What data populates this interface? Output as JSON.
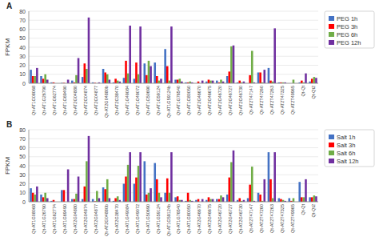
{
  "chart_data": [
    {
      "type": "bar",
      "title": "A",
      "y_label": "FPKM",
      "categories": [
        "Qt-AT1G08068",
        "Qt-AT1G26790",
        "Qt-AT1G62774",
        "Qt-AT1G69490",
        "Qt-AT2G04880",
        "Qt-AT2G04874",
        "Qt-AT2G04877",
        "Qt-AT2G04880b",
        "Qt-AT2G38470",
        "Qt-AT1G49084",
        "Qt-AT1G49072",
        "Qt-AT1G50690",
        "Qt-AT1G59124",
        "Qt-AT1G59124b",
        "Qt-AT1G76540",
        "Qt-AT1G80050",
        "Qt-AT2G46670",
        "Qt-AT2G46675",
        "Qt-AT2G46720",
        "Qt-AT2G46727",
        "Qt-AT2G46730",
        "Qt-AT2T47147",
        "Qt-AT2T47260",
        "Qt-AT2T47263",
        "Qt-AT2T47325",
        "Qt-AT2T49965",
        "Qt-Qt",
        "Qt-Qt2"
      ],
      "series": [
        {
          "name": "PEG 1h",
          "color": "#4472c4",
          "values": [
            15,
            8,
            1,
            0.5,
            3,
            7,
            1,
            16,
            1,
            6,
            5,
            22,
            23,
            38,
            4,
            1,
            0,
            2,
            3,
            8,
            1,
            0,
            12,
            17,
            1,
            0,
            1,
            2
          ]
        },
        {
          "name": "PEG 3h",
          "color": "#ff0000",
          "values": [
            8,
            5,
            1,
            0.5,
            1,
            22,
            0.5,
            12,
            5,
            25,
            23,
            9,
            8,
            19,
            4,
            1,
            2,
            4,
            1,
            13,
            3,
            9,
            12,
            3,
            1,
            0,
            3,
            5
          ]
        },
        {
          "name": "PEG 6h",
          "color": "#70ad47",
          "values": [
            8,
            10,
            0,
            0,
            9,
            16,
            0,
            10,
            3,
            11,
            10,
            25,
            3,
            3,
            5,
            2,
            0,
            3,
            4,
            41,
            1,
            36,
            1,
            2,
            1,
            4,
            1,
            7
          ]
        },
        {
          "name": "PEG 12h",
          "color": "#7030a0",
          "values": [
            17,
            4,
            0,
            4,
            28,
            73,
            1,
            4,
            2,
            64,
            63,
            19,
            5,
            63,
            2,
            1,
            3,
            3,
            2,
            42,
            2,
            1,
            15,
            61,
            1,
            0,
            11,
            6
          ]
        }
      ],
      "ylim": [
        0,
        80
      ],
      "yticks": [
        0,
        10,
        20,
        30,
        40,
        50,
        60,
        70,
        80
      ],
      "grid": true,
      "legend": "right"
    },
    {
      "type": "bar",
      "title": "B",
      "y_label": "FPKM",
      "categories": [
        "Qt-AT1G08068",
        "Qt-AT1G26790",
        "Qt-AT1G62774",
        "Qt-AT1G69490",
        "Qt-AT2G04880",
        "Qt-AT2G04874",
        "Qt-AT2G04877",
        "Qt-AT2G04880b",
        "Qt-AT2G38470",
        "Qt-AT1G49084",
        "Qt-AT1G49072",
        "Qt-AT1G50690",
        "Qt-AT1G59124",
        "Qt-AT1G59124b",
        "Qt-AT1G76540",
        "Qt-AT1G80050",
        "Qt-AT2G46670",
        "Qt-AT2G46675",
        "Qt-AT2G46720",
        "Qt-AT2G46727",
        "Qt-AT2G46730",
        "Qt-AT2T47147",
        "Qt-AT2T47260",
        "Qt-AT2T47263",
        "Qt-AT2T47325",
        "Qt-AT2T49965",
        "Qt-Qt",
        "Qt-Qt2"
      ],
      "series": [
        {
          "name": "Salt 1h",
          "color": "#4472c4",
          "values": [
            15,
            8,
            1,
            13,
            3,
            3,
            3,
            16,
            1,
            20,
            20,
            45,
            43,
            10,
            5,
            1,
            2,
            2,
            3,
            8,
            2,
            4,
            10,
            55,
            4,
            4,
            22,
            5
          ]
        },
        {
          "name": "Salt 3h",
          "color": "#ff0000",
          "values": [
            10,
            5,
            2,
            13,
            3,
            17,
            0.5,
            14,
            4,
            28,
            27,
            8,
            25,
            26,
            6,
            10,
            3,
            5,
            3,
            27,
            4,
            19,
            8,
            25,
            3,
            1,
            5,
            5
          ]
        },
        {
          "name": "Salt 6h",
          "color": "#70ad47",
          "values": [
            8,
            10,
            0,
            0,
            9,
            45,
            12,
            25,
            6,
            41,
            40,
            10,
            10,
            10,
            2,
            2,
            0,
            3,
            7,
            44,
            1,
            39,
            1,
            4,
            2,
            4,
            5,
            7
          ]
        },
        {
          "name": "Salt 12h",
          "color": "#7030a0",
          "values": [
            17,
            4,
            0,
            36,
            28,
            73,
            4,
            4,
            2,
            55,
            55,
            15,
            5,
            55,
            2,
            1,
            3,
            3,
            5,
            57,
            2,
            1,
            25,
            55,
            1,
            0,
            25,
            6
          ]
        }
      ],
      "ylim": [
        0,
        80
      ],
      "yticks": [
        0,
        10,
        20,
        30,
        40,
        50,
        60,
        70,
        80
      ],
      "grid": true,
      "legend": "right"
    }
  ]
}
